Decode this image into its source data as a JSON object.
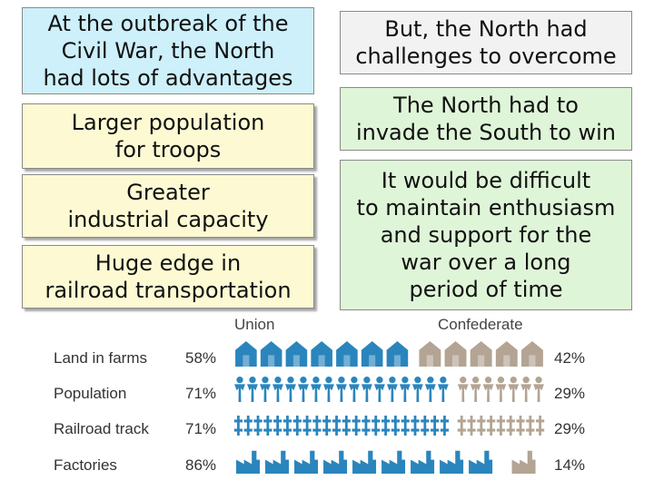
{
  "left": {
    "heading": "At the outbreak of the\nCivil War, the North\nhad lots of advantages",
    "advantages": [
      "Larger population\nfor troops",
      "Greater\nindustrial capacity",
      "Huge edge in\nrailroad transportation"
    ]
  },
  "right": {
    "heading": "But, the North had\nchallenges to overcome",
    "challenges": [
      "The North had to\ninvade the South to win",
      "It would be difficult\nto maintain enthusiasm\nand support for the\nwar over a long\nperiod of time"
    ]
  },
  "chart_data": {
    "type": "pictograph",
    "series": [
      "Union",
      "Confederate"
    ],
    "colors": {
      "union": "#2a85bd",
      "confederate": "#b3a493"
    },
    "rows": [
      {
        "label": "Land in farms",
        "union_label": "58%",
        "confederate_label": "42%",
        "union": 58,
        "confederate": 42,
        "icon": "barn-icon",
        "union_icons": 7,
        "confederate_icons": 5
      },
      {
        "label": "Population",
        "union_label": "71%",
        "confederate_label": "29%",
        "union": 71,
        "confederate": 29,
        "icon": "person-icon",
        "union_icons": 17,
        "confederate_icons": 7
      },
      {
        "label": "Railroad track",
        "union_label": "71%",
        "confederate_label": "29%",
        "union": 71,
        "confederate": 29,
        "icon": "railroad-track-icon",
        "union_icons": 22,
        "confederate_icons": 9
      },
      {
        "label": "Factories",
        "union_label": "86%",
        "confederate_label": "14%",
        "union": 86,
        "confederate": 14,
        "icon": "factory-icon",
        "union_icons": 9,
        "confederate_icons": 1
      }
    ]
  }
}
